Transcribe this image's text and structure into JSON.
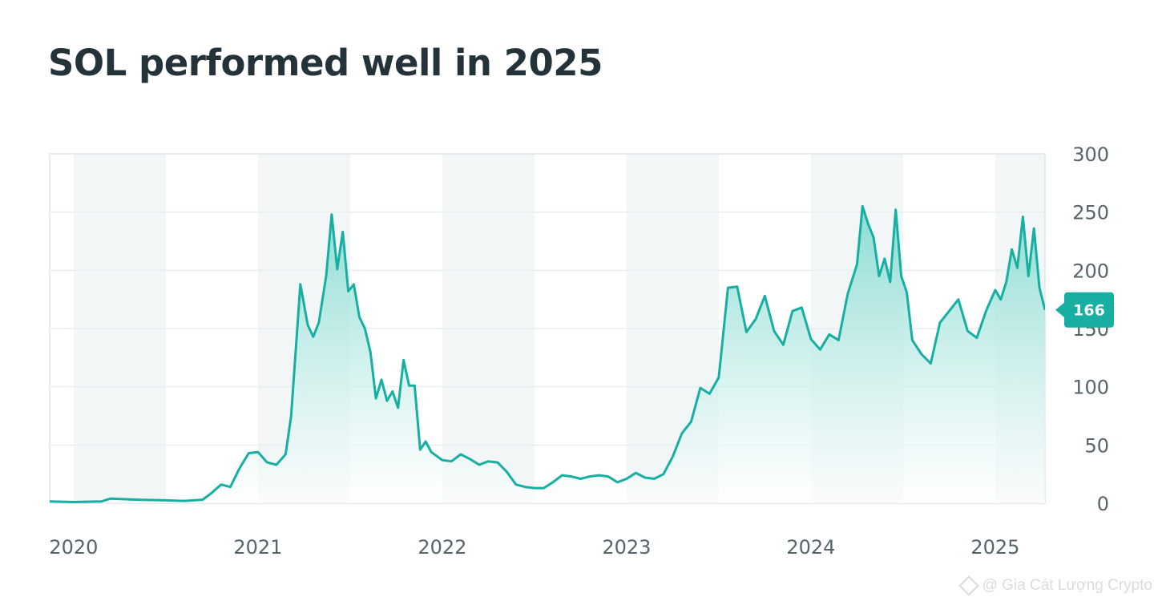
{
  "title": "SOL performed well in 2025",
  "watermark": "@ Gia Cát Lượng Crypto",
  "colors": {
    "line": "#16afa2",
    "fill_top": "#7fd9cf",
    "band": "#f2f6f7",
    "grid": "#e8eef0",
    "badge": "#16afa2"
  },
  "chart_data": {
    "type": "area",
    "title": "SOL performed well in 2025",
    "xlabel": "",
    "ylabel": "",
    "ylim": [
      0,
      300
    ],
    "y_ticks": [
      0,
      50,
      100,
      150,
      200,
      250,
      300
    ],
    "xlim": [
      2019.87,
      2025.27
    ],
    "x_ticks": [
      2020,
      2021,
      2022,
      2023,
      2024,
      2025
    ],
    "x_tick_labels": [
      "2020",
      "2021",
      "2022",
      "2023",
      "2024",
      "2025"
    ],
    "grid": true,
    "shaded_year_bands": [
      [
        2020.0,
        2020.5
      ],
      [
        2021.0,
        2021.5
      ],
      [
        2022.0,
        2022.5
      ],
      [
        2023.0,
        2023.5
      ],
      [
        2024.0,
        2024.5
      ],
      [
        2025.0,
        2025.5
      ]
    ],
    "last_value_label": "166",
    "series": [
      {
        "x": [
          2019.87,
          2020.0,
          2020.15,
          2020.2,
          2020.35,
          2020.5,
          2020.6,
          2020.7,
          2020.75,
          2020.8,
          2020.85,
          2020.9,
          2020.95,
          2021.0,
          2021.05,
          2021.1,
          2021.15,
          2021.18,
          2021.23,
          2021.27,
          2021.3,
          2021.33,
          2021.37,
          2021.4,
          2021.43,
          2021.46,
          2021.49,
          2021.52,
          2021.55,
          2021.58,
          2021.61,
          2021.64,
          2021.67,
          2021.7,
          2021.73,
          2021.76,
          2021.79,
          2021.82,
          2021.85,
          2021.88,
          2021.91,
          2021.94,
          2022.0,
          2022.05,
          2022.1,
          2022.15,
          2022.2,
          2022.25,
          2022.3,
          2022.35,
          2022.4,
          2022.45,
          2022.5,
          2022.55,
          2022.6,
          2022.65,
          2022.7,
          2022.75,
          2022.8,
          2022.85,
          2022.9,
          2022.95,
          2023.0,
          2023.05,
          2023.1,
          2023.15,
          2023.2,
          2023.25,
          2023.3,
          2023.35,
          2023.4,
          2023.45,
          2023.5,
          2023.55,
          2023.6,
          2023.65,
          2023.7,
          2023.75,
          2023.8,
          2023.85,
          2023.9,
          2023.95,
          2024.0,
          2024.05,
          2024.1,
          2024.15,
          2024.2,
          2024.25,
          2024.28,
          2024.31,
          2024.34,
          2024.37,
          2024.4,
          2024.43,
          2024.46,
          2024.49,
          2024.52,
          2024.55,
          2024.6,
          2024.65,
          2024.7,
          2024.75,
          2024.8,
          2024.85,
          2024.9,
          2024.95,
          2025.0,
          2025.03,
          2025.06,
          2025.09,
          2025.12,
          2025.15,
          2025.18,
          2025.21,
          2025.24,
          2025.27
        ],
        "values": [
          1.5,
          1,
          1.5,
          4,
          3,
          2.5,
          2,
          3,
          9,
          16,
          14,
          30,
          43,
          44,
          35,
          33,
          42,
          75,
          188,
          153,
          143,
          155,
          195,
          248,
          201,
          233,
          182,
          188,
          160,
          150,
          130,
          90,
          106,
          88,
          96,
          82,
          123,
          101,
          101,
          46,
          53,
          44,
          37,
          36,
          42,
          38,
          33,
          36,
          35,
          27,
          16,
          14,
          13,
          13,
          18,
          24,
          23,
          21,
          23,
          24,
          23,
          18,
          21,
          26,
          22,
          21,
          25,
          40,
          60,
          70,
          99,
          94,
          108,
          185,
          186,
          147,
          158,
          178,
          148,
          136,
          165,
          168,
          141,
          132,
          145,
          140,
          180,
          205,
          255,
          240,
          228,
          195,
          210,
          190,
          252,
          195,
          181,
          140,
          128,
          120,
          155,
          165,
          175,
          148,
          142,
          165,
          183,
          175,
          190,
          218,
          202,
          246,
          195,
          236,
          185,
          166
        ]
      }
    ]
  }
}
